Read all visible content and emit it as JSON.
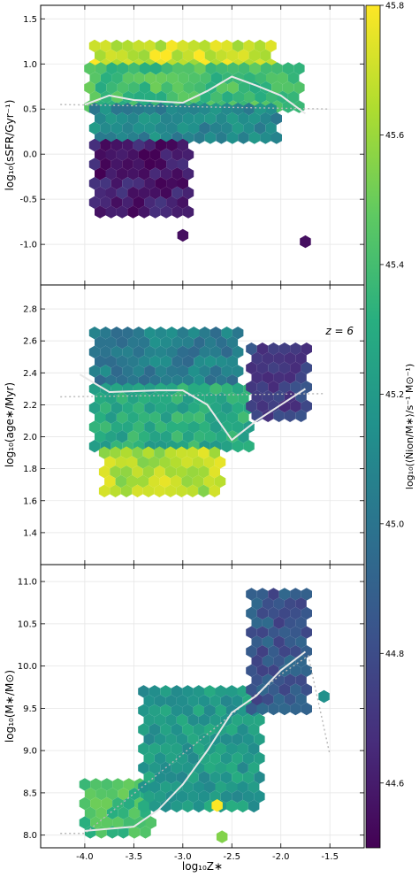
{
  "chart_data": [
    {
      "type": "heatmap",
      "subtype": "hexbin",
      "panel": "top",
      "ylabel": "log₁₀(sSFR/Gyr⁻¹)",
      "xlim": [
        -4.45,
        -1.15
      ],
      "ylim": [
        -1.45,
        1.65
      ],
      "yticks": [
        "-1.0",
        "-0.5",
        "0.0",
        "0.5",
        "1.0",
        "1.5"
      ],
      "ytick_values": [
        -1.0,
        -0.5,
        0.0,
        0.5,
        1.0,
        1.5
      ],
      "grid": true,
      "median_line": {
        "x": [
          -4.0,
          -3.75,
          -3.5,
          -3.0,
          -2.75,
          -2.5,
          -2.25,
          -2.0,
          -1.75
        ],
        "y": [
          0.55,
          0.65,
          0.6,
          0.57,
          0.7,
          0.86,
          0.76,
          0.65,
          0.45
        ]
      },
      "reference_line": {
        "x": [
          -4.25,
          -1.5
        ],
        "y": [
          0.55,
          0.5
        ]
      },
      "hex_clusters": [
        {
          "region": "upper band",
          "x": [
            -3.9,
            -2.1
          ],
          "y": [
            0.95,
            1.2
          ],
          "color_value": 45.7
        },
        {
          "region": "mid band",
          "x": [
            -3.95,
            -1.8
          ],
          "y": [
            0.5,
            0.95
          ],
          "color_value": 45.4
        },
        {
          "region": "lower band",
          "x": [
            -3.9,
            -2.0
          ],
          "y": [
            0.1,
            0.5
          ],
          "color_value": 45.1
        },
        {
          "region": "tail",
          "x": [
            -3.9,
            -2.9
          ],
          "y": [
            -0.7,
            0.1
          ],
          "color_value": 44.6
        }
      ],
      "outliers": [
        {
          "x": [
            -3.0
          ],
          "y": [
            -0.9
          ],
          "color_value": 44.55
        },
        {
          "x": [
            -1.75
          ],
          "y": [
            -0.97
          ],
          "color_value": 44.55
        }
      ]
    },
    {
      "type": "heatmap",
      "subtype": "hexbin",
      "panel": "middle",
      "annotation": "z = 6",
      "ylabel": "log₁₀(age∗/Myr)",
      "xlim": [
        -4.45,
        -1.15
      ],
      "ylim": [
        1.2,
        2.95
      ],
      "yticks": [
        "1.4",
        "1.6",
        "1.8",
        "2.0",
        "2.2",
        "2.4",
        "2.6",
        "2.8"
      ],
      "ytick_values": [
        1.4,
        1.6,
        1.8,
        2.0,
        2.2,
        2.4,
        2.6,
        2.8
      ],
      "grid": true,
      "median_line": {
        "x": [
          -4.05,
          -3.75,
          -3.25,
          -3.0,
          -2.75,
          -2.5,
          -2.25,
          -2.0,
          -1.75
        ],
        "y": [
          2.39,
          2.28,
          2.29,
          2.29,
          2.2,
          1.98,
          2.1,
          2.2,
          2.3
        ]
      },
      "reference_line": {
        "x": [
          -4.25,
          -1.55
        ],
        "y": [
          2.25,
          2.27
        ]
      },
      "hex_clusters": [
        {
          "region": "upper",
          "x": [
            -3.9,
            -2.4
          ],
          "y": [
            2.3,
            2.65
          ],
          "color_value": 45.05
        },
        {
          "region": "centre",
          "x": [
            -3.9,
            -2.3
          ],
          "y": [
            1.9,
            2.3
          ],
          "color_value": 45.3
        },
        {
          "region": "lower",
          "x": [
            -3.8,
            -2.6
          ],
          "y": [
            1.62,
            1.9
          ],
          "color_value": 45.65
        },
        {
          "region": "right arm",
          "x": [
            -2.3,
            -1.7
          ],
          "y": [
            2.1,
            2.55
          ],
          "color_value": 44.75
        }
      ]
    },
    {
      "type": "heatmap",
      "subtype": "hexbin",
      "panel": "bottom",
      "xlabel": "log₁₀Z∗",
      "ylabel": "log₁₀(M∗/M⊙)",
      "xlim": [
        -4.45,
        -1.15
      ],
      "ylim": [
        7.85,
        11.2
      ],
      "xticks": [
        "-4.0",
        "-3.5",
        "-3.0",
        "-2.5",
        "-2.0",
        "-1.5"
      ],
      "xtick_values": [
        -4.0,
        -3.5,
        -3.0,
        -2.5,
        -2.0,
        -1.5
      ],
      "yticks": [
        "8.0",
        "8.5",
        "9.0",
        "9.5",
        "10.0",
        "10.5",
        "11.0"
      ],
      "ytick_values": [
        8.0,
        8.5,
        9.0,
        9.5,
        10.0,
        10.5,
        11.0
      ],
      "grid": true,
      "median_line": {
        "x": [
          -4.0,
          -3.5,
          -3.25,
          -3.0,
          -2.75,
          -2.5,
          -2.25,
          -2.0,
          -1.75
        ],
        "y": [
          8.05,
          8.1,
          8.3,
          8.6,
          9.0,
          9.45,
          9.65,
          9.95,
          10.17
        ]
      },
      "reference_line": {
        "x": [
          -4.25,
          -4.0,
          -2.0,
          -1.72,
          -1.5
        ],
        "y": [
          8.02,
          8.02,
          9.9,
          10.12,
          8.95
        ]
      },
      "hex_clusters": [
        {
          "region": "low-mass",
          "x": [
            -4.0,
            -3.3
          ],
          "y": [
            7.97,
            8.6
          ],
          "color_value": 45.4
        },
        {
          "region": "ridge",
          "x": [
            -3.4,
            -2.2
          ],
          "y": [
            8.3,
            9.7
          ],
          "color_value": 45.2
        },
        {
          "region": "high-mass",
          "x": [
            -2.3,
            -1.7
          ],
          "y": [
            9.4,
            10.85
          ],
          "color_value": 44.85
        }
      ],
      "outliers": [
        {
          "x": [
            -1.56
          ],
          "y": [
            9.64
          ],
          "color_value": 45.15
        },
        {
          "x": [
            -2.65
          ],
          "y": [
            8.35
          ],
          "color_value": 45.8
        },
        {
          "x": [
            -2.6
          ],
          "y": [
            7.98
          ],
          "color_value": 45.55
        }
      ]
    }
  ],
  "colorbar": {
    "label": "log₁₀(⟨Ṅion/M∗⟩/s⁻¹ M⊙⁻¹)",
    "vmin": 44.5,
    "vmax": 45.8,
    "ticks": [
      "44.6",
      "44.8",
      "45.0",
      "45.2",
      "45.4",
      "45.6",
      "45.8"
    ],
    "tick_values": [
      44.6,
      44.8,
      45.0,
      45.2,
      45.4,
      45.6,
      45.8
    ],
    "colormap": "viridis"
  },
  "colors": {
    "median_line": "#e8e8e8",
    "reference_line": "#b8b8b8",
    "grid": "#e6e6e6",
    "axes": "#000000"
  }
}
